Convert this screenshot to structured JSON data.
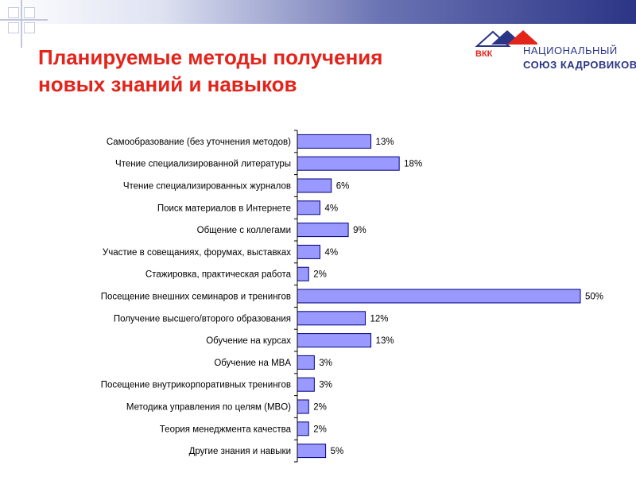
{
  "slide": {
    "title_line1": "Планируемые методы получения",
    "title_line2": "новых знаний и навыков",
    "logo": {
      "abbr": "ВКК",
      "line1": "НАЦИОНАЛЬНЫЙ",
      "line2": "СОЮЗ КАДРОВИКОВ"
    }
  },
  "colors": {
    "title": "#e3241b",
    "bar_fill": "#9999ff",
    "bar_stroke": "#000080",
    "brand_blue": "#2b3585",
    "brand_red": "#e3241b"
  },
  "chart_data": {
    "type": "bar",
    "orientation": "horizontal",
    "categories": [
      "Самообразование (без уточнения методов)",
      "Чтение специализированной литературы",
      "Чтение специализированных журналов",
      "Поиск материалов в Интернете",
      "Общение с коллегами",
      "Участие в совещаниях, форумах, выставках",
      "Стажировка, практическая работа",
      "Посещение внешних семинаров и тренингов",
      "Получение высшего/второго образования",
      "Обучение на курсах",
      "Обучение на MBA",
      "Посещение внутрикорпоративных тренингов",
      "Методика управления по целям (MBO)",
      "Теория менеджмента качества",
      "Другие знания и навыки"
    ],
    "values": [
      13,
      18,
      6,
      4,
      9,
      4,
      2,
      50,
      12,
      13,
      3,
      3,
      2,
      2,
      5
    ],
    "value_labels": [
      "13%",
      "18%",
      "6%",
      "4%",
      "9%",
      "4%",
      "2%",
      "50%",
      "12%",
      "13%",
      "3%",
      "3%",
      "2%",
      "2%",
      "5%"
    ],
    "unit": "%",
    "xlim": [
      0,
      50
    ],
    "grid": false,
    "legend": "none"
  }
}
